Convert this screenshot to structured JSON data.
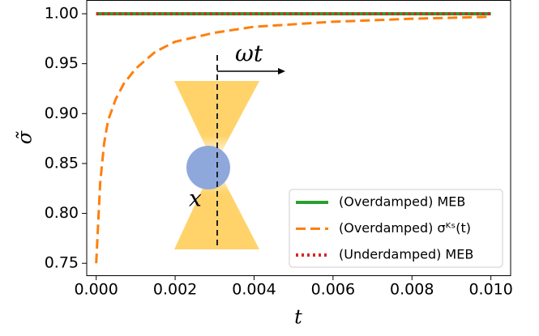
{
  "chart_data": {
    "type": "line",
    "xlabel": "t",
    "ylabel": "σ̃",
    "annotations": [
      "ωt",
      "x"
    ],
    "series": [
      {
        "name": "(Overdamped) MEB",
        "color": "#2ca02c",
        "style": "solid",
        "x": [
          0,
          0.01
        ],
        "values": [
          1.0,
          1.0
        ]
      },
      {
        "name": "(Overdamped) σᴷˢ(t)",
        "color": "#ff7f0e",
        "style": "dashed",
        "x": [
          0,
          0.0001,
          0.0002,
          0.0003,
          0.0005,
          0.0007,
          0.001,
          0.0015,
          0.002,
          0.003,
          0.004,
          0.006,
          0.008,
          0.01
        ],
        "values": [
          0.75,
          0.83,
          0.87,
          0.893,
          0.915,
          0.93,
          0.945,
          0.962,
          0.972,
          0.981,
          0.987,
          0.992,
          0.995,
          0.997
        ]
      },
      {
        "name": "(Underdamped) MEB",
        "color": "#d62728",
        "style": "dotted",
        "x": [
          0,
          0.01
        ],
        "values": [
          1.0,
          1.0
        ]
      }
    ],
    "xlim": [
      -0.00024,
      0.0105
    ],
    "ylim": [
      0.738,
      1.0138
    ],
    "xticks": [
      {
        "value": 0,
        "label": "0.000"
      },
      {
        "value": 0.002,
        "label": "0.002"
      },
      {
        "value": 0.004,
        "label": "0.004"
      },
      {
        "value": 0.006,
        "label": "0.006"
      },
      {
        "value": 0.008,
        "label": "0.008"
      },
      {
        "value": 0.01,
        "label": "0.010"
      }
    ],
    "yticks": [
      {
        "value": 0.75,
        "label": "0.75"
      },
      {
        "value": 0.8,
        "label": "0.80"
      },
      {
        "value": 0.85,
        "label": "0.85"
      },
      {
        "value": 0.9,
        "label": "0.90"
      },
      {
        "value": 0.95,
        "label": "0.95"
      },
      {
        "value": 1.0,
        "label": "1.00"
      }
    ],
    "grid": false,
    "legend": "lower right"
  }
}
